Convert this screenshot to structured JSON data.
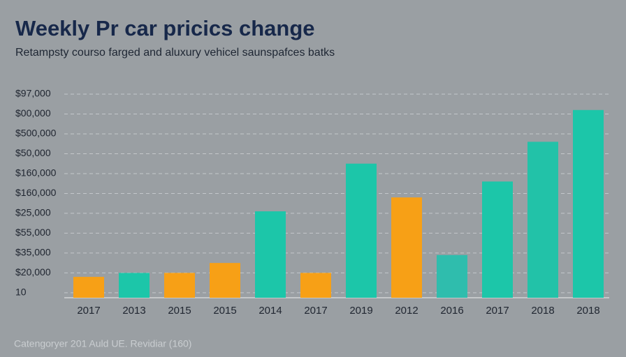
{
  "chart_data": {
    "type": "bar",
    "title": "Weekly Pr car pricics change",
    "subtitle": "Retampsty courso farged and aluxury vehicel saunspafces batks",
    "footer": "Catengoryer 201 Auld UE. Revidiar (160)",
    "categories": [
      "2017",
      "2013",
      "2015",
      "2015",
      "2014",
      "2017",
      "2019",
      "2012",
      "2016",
      "2017",
      "2018",
      "2018"
    ],
    "values": [
      18,
      20,
      20,
      25,
      51,
      20,
      75,
      58,
      29,
      66,
      86,
      102
    ],
    "colors": [
      "#f7a016",
      "#1cc6a9",
      "#f7a016",
      "#f7a016",
      "#1cc6a9",
      "#f7a016",
      "#1cc6a9",
      "#f7a016",
      "#2fbdad",
      "#1cc6a9",
      "#22c2a8",
      "#1cc6a9"
    ],
    "ylim": [
      7.5,
      110
    ],
    "yticks": [
      10,
      {
        "value": 20,
        "label": "$20,000"
      },
      {
        "value": 30,
        "label": "$35,000"
      },
      {
        "value": 40,
        "label": "$55,000"
      },
      {
        "value": 50,
        "label": "$25,000"
      },
      {
        "value": 60,
        "label": "$160,000"
      },
      {
        "value": 70,
        "label": "$160,000"
      },
      {
        "value": 80,
        "label": "$50,000"
      },
      {
        "value": 90,
        "label": "$500,000"
      },
      {
        "value": 100,
        "label": "$00,000"
      },
      {
        "value": 110,
        "label": "$97,000"
      }
    ],
    "grid": true
  }
}
